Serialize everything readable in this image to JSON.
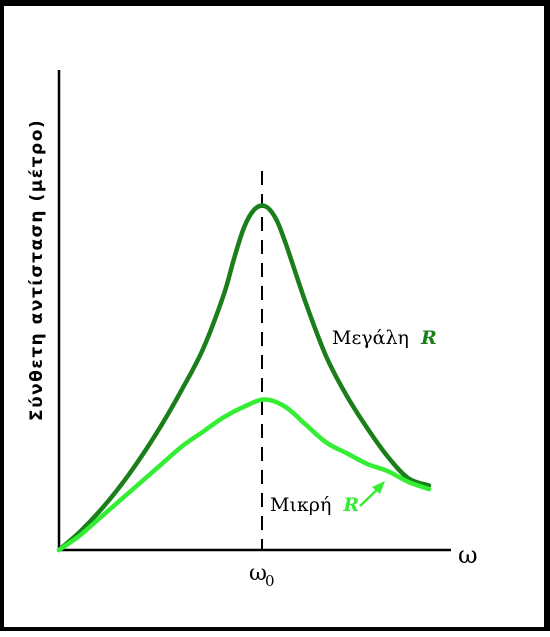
{
  "chart_data": {
    "type": "line",
    "ylabel": "Σύνθετη αντίσταση (μέτρο)",
    "xlabel": "ω",
    "x_tick_label": "ω",
    "x_tick_subscript": "0",
    "x_tick_value": 0,
    "xlim": [
      -5,
      4
    ],
    "ylim": [
      0,
      10
    ],
    "grid": false,
    "series": [
      {
        "name_text": "Μεγάλη",
        "name_symbol": "R",
        "color": "#1a7f1a",
        "x": [
          -5,
          -4.5,
          -4,
          -3.5,
          -3,
          -2.5,
          -2,
          -1.5,
          -1,
          -0.75,
          -0.5,
          -0.25,
          0,
          0.25,
          0.5,
          1,
          1.5,
          2,
          2.5,
          3,
          3.5,
          4
        ],
        "y": [
          0,
          0.5,
          1.1,
          1.8,
          2.6,
          3.5,
          4.5,
          5.6,
          7.1,
          8.1,
          9.0,
          9.5,
          9.6,
          9.3,
          8.6,
          6.9,
          5.4,
          4.3,
          3.4,
          2.6,
          2.0,
          1.8
        ]
      },
      {
        "name_text": "Μικρή",
        "name_symbol": "R",
        "color": "#33ee33",
        "x": [
          -5,
          -4.5,
          -4,
          -3.5,
          -3,
          -2.5,
          -2,
          -1.5,
          -1,
          -0.5,
          0,
          0.5,
          1,
          1.5,
          2,
          2.5,
          3,
          3.5,
          4
        ],
        "y": [
          0,
          0.4,
          0.9,
          1.4,
          1.9,
          2.4,
          2.9,
          3.3,
          3.7,
          4.0,
          4.2,
          4.0,
          3.5,
          3.0,
          2.7,
          2.4,
          2.2,
          1.9,
          1.7
        ]
      }
    ]
  }
}
